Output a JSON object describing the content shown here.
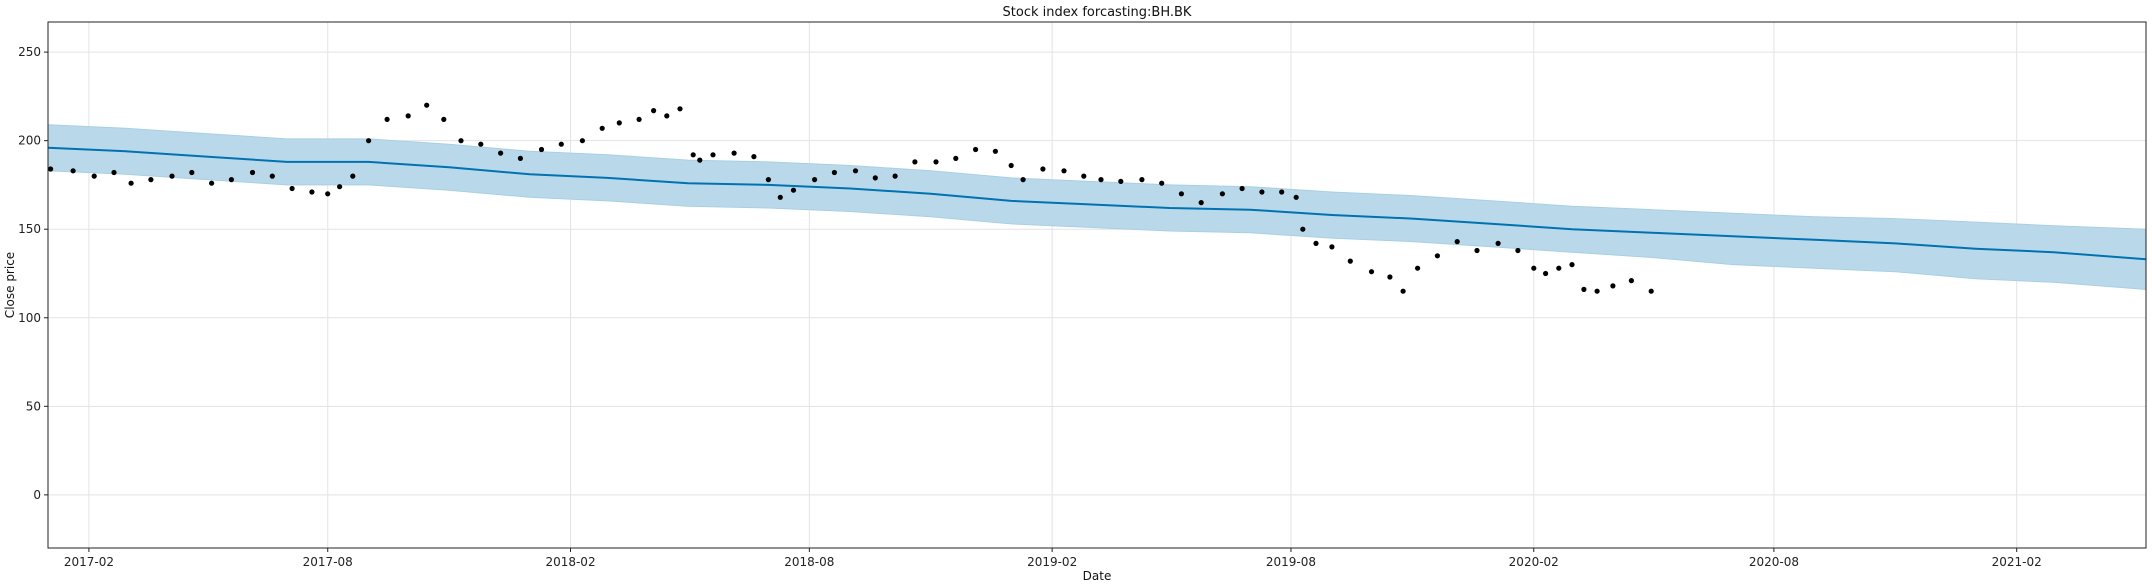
{
  "chart_data": {
    "type": "scatter",
    "title": "Stock index forcasting:BH.BK",
    "xlabel": "Date",
    "ylabel": "Close price",
    "xlim": [
      "2017-01-01",
      "2021-05-10"
    ],
    "ylim": [
      -30,
      267
    ],
    "grid": true,
    "colors": {
      "points": "#000000",
      "trend": "#0072B2",
      "band": "#b9d9ea",
      "band_edge": "#a8cfe3"
    },
    "x_ticks": [
      "2017-02",
      "2017-08",
      "2018-02",
      "2018-08",
      "2019-02",
      "2019-08",
      "2020-02",
      "2020-08",
      "2021-02"
    ],
    "y_ticks": [
      0,
      50,
      100,
      150,
      200,
      250
    ],
    "series": [
      {
        "kind": "forecast",
        "x": [
          "2017-01-01",
          "2017-03-01",
          "2017-05-01",
          "2017-07-01",
          "2017-09-01",
          "2017-11-01",
          "2018-01-01",
          "2018-03-01",
          "2018-05-01",
          "2018-07-01",
          "2018-09-01",
          "2018-11-01",
          "2019-01-01",
          "2019-03-01",
          "2019-05-01",
          "2019-07-01",
          "2019-09-01",
          "2019-11-01",
          "2020-01-01",
          "2020-03-01",
          "2020-05-01",
          "2020-07-01",
          "2020-09-01",
          "2020-11-01",
          "2021-01-01",
          "2021-03-01",
          "2021-05-10"
        ],
        "yhat": [
          196,
          194,
          191,
          188,
          188,
          185,
          181,
          179,
          176,
          175,
          173,
          170,
          166,
          164,
          162,
          161,
          158,
          156,
          153,
          150,
          148,
          146,
          144,
          142,
          139,
          137,
          133
        ],
        "yhat_lower": [
          183,
          181,
          178,
          175,
          175,
          172,
          168,
          166,
          163,
          162,
          160,
          157,
          153,
          151,
          149,
          148,
          145,
          143,
          140,
          137,
          134,
          130,
          128,
          126,
          122,
          120,
          116
        ],
        "yhat_upper": [
          209,
          207,
          204,
          201,
          201,
          198,
          194,
          192,
          189,
          188,
          186,
          183,
          179,
          177,
          175,
          174,
          171,
          169,
          166,
          163,
          161,
          159,
          157,
          156,
          154,
          152,
          150
        ]
      },
      {
        "kind": "observed",
        "x": [
          "2017-01-03",
          "2017-01-20",
          "2017-02-05",
          "2017-02-20",
          "2017-03-05",
          "2017-03-20",
          "2017-04-05",
          "2017-04-20",
          "2017-05-05",
          "2017-05-20",
          "2017-06-05",
          "2017-06-20",
          "2017-07-05",
          "2017-07-20",
          "2017-08-01",
          "2017-08-10",
          "2017-08-20",
          "2017-09-01",
          "2017-09-15",
          "2017-10-01",
          "2017-10-15",
          "2017-10-28",
          "2017-11-10",
          "2017-11-25",
          "2017-12-10",
          "2017-12-25",
          "2018-01-10",
          "2018-01-25",
          "2018-02-10",
          "2018-02-25",
          "2018-03-10",
          "2018-03-25",
          "2018-04-05",
          "2018-04-15",
          "2018-04-25",
          "2018-05-05",
          "2018-05-10",
          "2018-05-20",
          "2018-06-05",
          "2018-06-20",
          "2018-07-01",
          "2018-07-10",
          "2018-07-20",
          "2018-08-05",
          "2018-08-20",
          "2018-09-05",
          "2018-09-20",
          "2018-10-05",
          "2018-10-20",
          "2018-11-05",
          "2018-11-20",
          "2018-12-05",
          "2018-12-20",
          "2019-01-01",
          "2019-01-10",
          "2019-01-25",
          "2019-02-10",
          "2019-02-25",
          "2019-03-10",
          "2019-03-25",
          "2019-04-10",
          "2019-04-25",
          "2019-05-10",
          "2019-05-25",
          "2019-06-10",
          "2019-06-25",
          "2019-07-10",
          "2019-07-25",
          "2019-08-05",
          "2019-08-10",
          "2019-08-20",
          "2019-09-01",
          "2019-09-15",
          "2019-10-01",
          "2019-10-15",
          "2019-10-25",
          "2019-11-05",
          "2019-11-20",
          "2019-12-05",
          "2019-12-20",
          "2020-01-05",
          "2020-01-20",
          "2020-02-01",
          "2020-02-10",
          "2020-02-20",
          "2020-03-01",
          "2020-03-10",
          "2020-03-20",
          "2020-04-01",
          "2020-04-15",
          "2020-04-30"
        ],
        "y": [
          184,
          183,
          180,
          182,
          176,
          178,
          180,
          182,
          176,
          178,
          182,
          180,
          173,
          171,
          170,
          174,
          180,
          200,
          212,
          214,
          220,
          212,
          200,
          198,
          193,
          190,
          195,
          198,
          200,
          207,
          210,
          212,
          217,
          214,
          218,
          192,
          189,
          192,
          193,
          191,
          178,
          168,
          172,
          178,
          182,
          183,
          179,
          180,
          188,
          188,
          190,
          195,
          194,
          186,
          178,
          184,
          183,
          180,
          178,
          177,
          178,
          176,
          170,
          165,
          170,
          173,
          171,
          171,
          168,
          150,
          142,
          140,
          132,
          126,
          123,
          115,
          128,
          135,
          143,
          138,
          142,
          138,
          128,
          125,
          128,
          130,
          116,
          115,
          118,
          121,
          115
        ]
      }
    ]
  }
}
